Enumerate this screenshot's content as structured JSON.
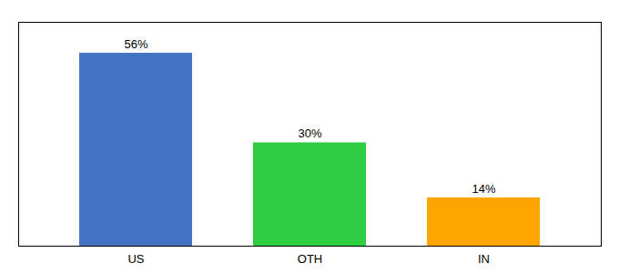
{
  "chart_data": {
    "type": "bar",
    "categories": [
      "US",
      "OTH",
      "IN"
    ],
    "values": [
      56,
      30,
      14
    ],
    "value_labels": [
      "56%",
      "30%",
      "14%"
    ],
    "colors": [
      "#4472C4",
      "#2ECC40",
      "#FFA500"
    ],
    "ylim": [
      0,
      65
    ],
    "data_labels": true,
    "tick_labels": "x",
    "grid": false
  }
}
